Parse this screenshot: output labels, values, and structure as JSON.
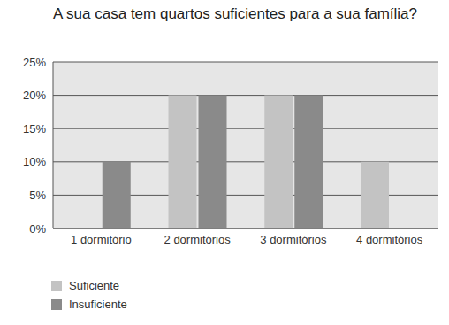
{
  "chart_data": {
    "type": "bar",
    "title": "A sua casa tem quartos suficientes para a sua família?",
    "categories": [
      "1 dormitório",
      "2 dormitórios",
      "3 dormitórios",
      "4 dormitórios"
    ],
    "series": [
      {
        "name": "Suficiente",
        "color": "#c3c3c3",
        "values": [
          0,
          20,
          20,
          10
        ]
      },
      {
        "name": "Insuficiente",
        "color": "#8a8a8a",
        "values": [
          10,
          20,
          20,
          0
        ]
      }
    ],
    "ylim": [
      0,
      25
    ],
    "yticks": [
      {
        "value": 0,
        "label": "0%"
      },
      {
        "value": 5,
        "label": "5%"
      },
      {
        "value": 10,
        "label": "10%"
      },
      {
        "value": 15,
        "label": "15%"
      },
      {
        "value": 20,
        "label": "20%"
      },
      {
        "value": 25,
        "label": "25%"
      }
    ],
    "grid": true,
    "legend": "bottom left"
  }
}
